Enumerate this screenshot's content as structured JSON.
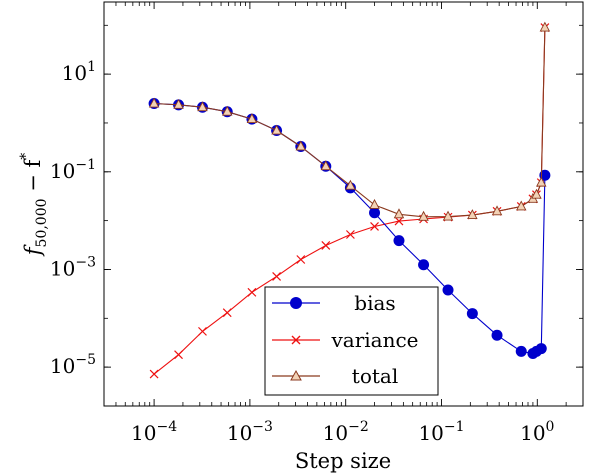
{
  "chart_data": {
    "type": "line",
    "xscale": "log",
    "yscale": "log",
    "xlabel": "Step size",
    "ylabel": "f",
    "ylabel_sub": "50,000",
    "ylabel_tail": " − f",
    "ylabel_sup": "*",
    "xlim": [
      3e-05,
      3
    ],
    "ylim": [
      1.6e-06,
      300
    ],
    "grid": false,
    "legend_position": "bottom-center",
    "x_ticks": [
      {
        "value": 0.0001,
        "base": "10",
        "exp": "−4"
      },
      {
        "value": 0.001,
        "base": "10",
        "exp": "−3"
      },
      {
        "value": 0.01,
        "base": "10",
        "exp": "−2"
      },
      {
        "value": 0.1,
        "base": "10",
        "exp": "−1"
      },
      {
        "value": 1,
        "base": "10",
        "exp": "0"
      }
    ],
    "y_ticks": [
      {
        "value": 1e-05,
        "base": "10",
        "exp": "−5"
      },
      {
        "value": 0.001,
        "base": "10",
        "exp": "−3"
      },
      {
        "value": 0.1,
        "base": "10",
        "exp": "−1"
      },
      {
        "value": 10,
        "base": "10",
        "exp": "1"
      }
    ],
    "series": [
      {
        "name": "bias",
        "color": "#0000cc",
        "marker": "circle",
        "x": [
          0.0001,
          0.00018,
          0.00032,
          0.00058,
          0.00105,
          0.0019,
          0.0034,
          0.0062,
          0.0112,
          0.02,
          0.036,
          0.065,
          0.117,
          0.21,
          0.38,
          0.68,
          0.9,
          0.98,
          1.1,
          1.2
        ],
        "y": [
          2.5,
          2.35,
          2.1,
          1.7,
          1.2,
          0.7,
          0.33,
          0.13,
          0.047,
          0.0145,
          0.0039,
          0.00125,
          0.00038,
          0.000125,
          4.5e-05,
          2.1e-05,
          1.9e-05,
          2.1e-05,
          2.4e-05,
          0.085
        ]
      },
      {
        "name": "variance",
        "color": "#ee1111",
        "marker": "x",
        "x": [
          0.0001,
          0.00018,
          0.00032,
          0.00058,
          0.00105,
          0.0019,
          0.0034,
          0.0062,
          0.0112,
          0.02,
          0.036,
          0.065,
          0.117,
          0.21,
          0.38,
          0.68,
          0.9,
          0.98,
          1.1,
          1.2
        ],
        "y": [
          7.2e-06,
          1.8e-05,
          5.4e-05,
          0.00013,
          0.00034,
          0.00072,
          0.0016,
          0.0031,
          0.0052,
          0.0076,
          0.0098,
          0.0108,
          0.0118,
          0.013,
          0.0155,
          0.0195,
          0.028,
          0.034,
          0.06,
          90
        ]
      },
      {
        "name": "total",
        "color": "#8b3a1f",
        "marker": "triangle",
        "x": [
          0.0001,
          0.00018,
          0.00032,
          0.00058,
          0.00105,
          0.0019,
          0.0034,
          0.0062,
          0.0112,
          0.02,
          0.036,
          0.065,
          0.117,
          0.21,
          0.38,
          0.68,
          0.9,
          0.98,
          1.1,
          1.2
        ],
        "y": [
          2.5,
          2.35,
          2.1,
          1.7,
          1.2,
          0.7,
          0.33,
          0.13,
          0.052,
          0.021,
          0.0135,
          0.012,
          0.0121,
          0.013,
          0.0155,
          0.0195,
          0.028,
          0.034,
          0.06,
          90
        ]
      }
    ]
  }
}
